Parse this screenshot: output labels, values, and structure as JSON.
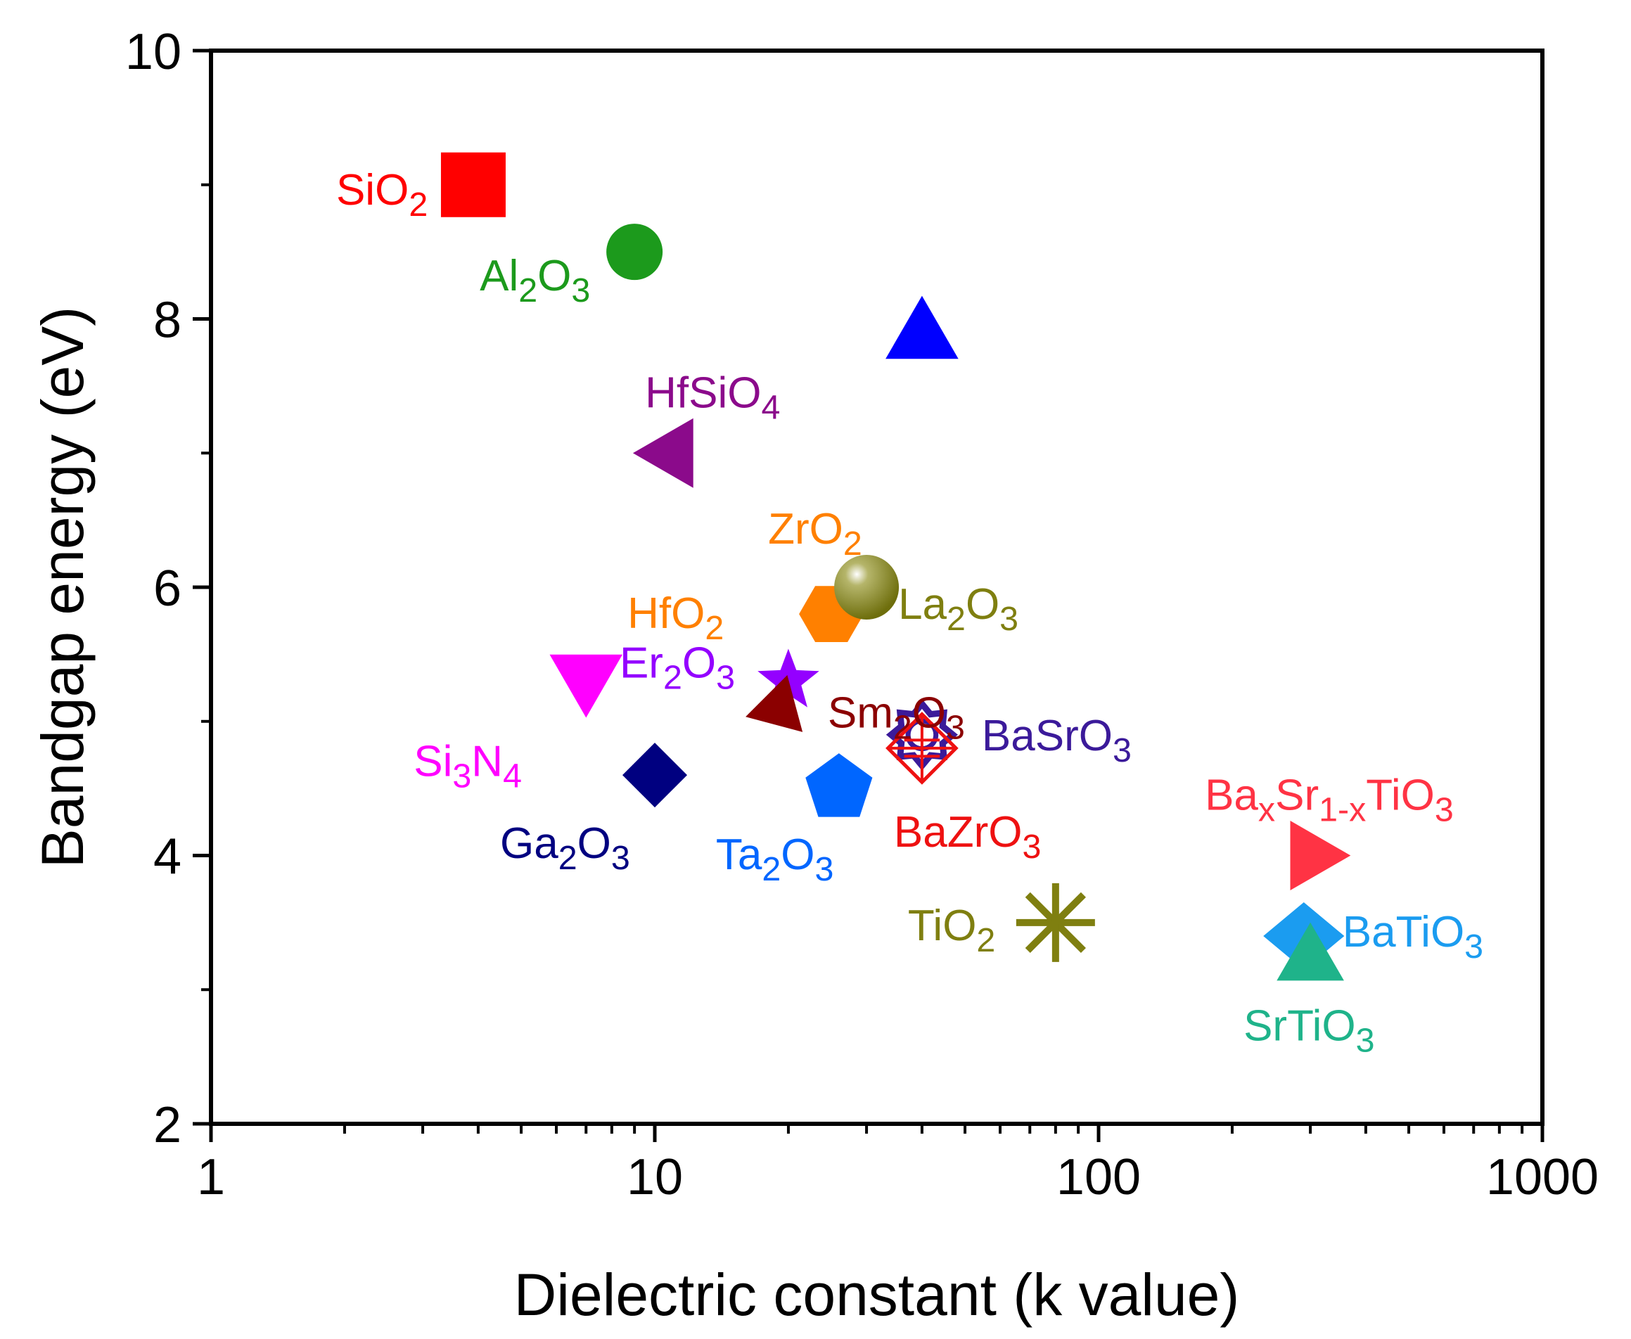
{
  "chart_data": {
    "type": "scatter",
    "title": "",
    "xlabel": "Dielectric constant (k value)",
    "ylabel": "Bandgap energy (eV)",
    "xscale": "log",
    "xlim": [
      1,
      1000
    ],
    "ylim": [
      2,
      10
    ],
    "xticks": [
      1,
      10,
      100,
      1000
    ],
    "xtick_labels": [
      "1",
      "10",
      "100",
      "1000"
    ],
    "yticks": [
      2,
      4,
      6,
      8,
      10
    ],
    "ytick_labels": [
      "2",
      "4",
      "6",
      "8",
      "10"
    ],
    "grid": false,
    "legend": "none",
    "points": [
      {
        "id": "sio2",
        "x": 3.9,
        "y": 9.0,
        "marker": "square",
        "color": "#ff0000",
        "label": [
          [
            "SiO",
            ""
          ],
          [
            "2",
            "sub"
          ]
        ]
      },
      {
        "id": "al2o3",
        "x": 9,
        "y": 8.5,
        "marker": "circle",
        "color": "#1c9a1c",
        "label": [
          [
            "Al",
            ""
          ],
          [
            "2",
            "sub"
          ],
          [
            "O",
            ""
          ],
          [
            "3",
            "sub"
          ]
        ]
      },
      {
        "id": "unlabeled-blue",
        "x": 40,
        "y": 7.9,
        "marker": "triangle-up",
        "color": "#0000ff",
        "label": []
      },
      {
        "id": "hfsio4",
        "x": 11,
        "y": 7.0,
        "marker": "triangle-left",
        "color": "#8b0a8b",
        "label": [
          [
            "HfSiO",
            ""
          ],
          [
            "4",
            "sub"
          ]
        ]
      },
      {
        "id": "zro2",
        "x": 25,
        "y": 5.8,
        "marker": "hexagon",
        "color": "#ff8000",
        "label": [
          [
            "ZrO",
            ""
          ],
          [
            "2",
            "sub"
          ]
        ]
      },
      {
        "id": "hfo2",
        "x": 25,
        "y": 5.8,
        "marker": "hexagon",
        "color": "#ff8000",
        "label": [
          [
            "HfO",
            ""
          ],
          [
            "2",
            "sub"
          ]
        ]
      },
      {
        "id": "la2o3",
        "x": 30,
        "y": 6.0,
        "marker": "sphere",
        "color": "#7f7f10",
        "label": [
          [
            "La",
            ""
          ],
          [
            "2",
            "sub"
          ],
          [
            "O",
            ""
          ],
          [
            "3",
            "sub"
          ]
        ]
      },
      {
        "id": "er2o3",
        "x": 20,
        "y": 5.3,
        "marker": "star",
        "color": "#9400ff",
        "label": [
          [
            "Er",
            ""
          ],
          [
            "2",
            "sub"
          ],
          [
            "O",
            ""
          ],
          [
            "3",
            "sub"
          ]
        ]
      },
      {
        "id": "sm2o3",
        "x": 19,
        "y": 5.1,
        "marker": "triangle-right-down",
        "color": "#8b0000",
        "label": [
          [
            "Sm",
            ""
          ],
          [
            "2",
            "sub"
          ],
          [
            "O",
            ""
          ],
          [
            "3",
            "sub"
          ]
        ]
      },
      {
        "id": "si3n4",
        "x": 7,
        "y": 5.3,
        "marker": "triangle-down",
        "color": "#ff00ff",
        "label": [
          [
            "Si",
            ""
          ],
          [
            "3",
            "sub"
          ],
          [
            "N",
            ""
          ],
          [
            "4",
            "sub"
          ]
        ]
      },
      {
        "id": "ga2o3",
        "x": 10,
        "y": 4.6,
        "marker": "diamond",
        "color": "#000080",
        "label": [
          [
            "Ga",
            ""
          ],
          [
            "2",
            "sub"
          ],
          [
            "O",
            ""
          ],
          [
            "3",
            "sub"
          ]
        ]
      },
      {
        "id": "ta2o3",
        "x": 26,
        "y": 4.5,
        "marker": "pentagon",
        "color": "#0066ff",
        "label": [
          [
            "Ta",
            ""
          ],
          [
            "2",
            "sub"
          ],
          [
            "O",
            ""
          ],
          [
            "3",
            "sub"
          ]
        ]
      },
      {
        "id": "basro3",
        "x": 40,
        "y": 4.9,
        "marker": "burst",
        "color": "#3b1a9a",
        "label": [
          [
            "BaSrO",
            ""
          ],
          [
            "3",
            "sub"
          ]
        ]
      },
      {
        "id": "bazro3",
        "x": 40,
        "y": 4.8,
        "marker": "octahedron",
        "color": "#ee1111",
        "label": [
          [
            "BaZrO",
            ""
          ],
          [
            "3",
            "sub"
          ]
        ]
      },
      {
        "id": "bastio3",
        "x": 300,
        "y": 4.0,
        "marker": "triangle-right",
        "color": "#ff3344",
        "label": [
          [
            "Ba",
            ""
          ],
          [
            "x",
            "sub"
          ],
          [
            "Sr",
            ""
          ],
          [
            "1-x",
            "sub"
          ],
          [
            "TiO",
            ""
          ],
          [
            "3",
            "sub"
          ]
        ]
      },
      {
        "id": "tio2",
        "x": 80,
        "y": 3.5,
        "marker": "asterisk",
        "color": "#7f7f10",
        "label": [
          [
            "TiO",
            ""
          ],
          [
            "2",
            "sub"
          ]
        ]
      },
      {
        "id": "batio3",
        "x": 290,
        "y": 3.4,
        "marker": "diamond-wide",
        "color": "#1b9cf0",
        "label": [
          [
            "BaTiO",
            ""
          ],
          [
            "3",
            "sub"
          ]
        ]
      },
      {
        "id": "srtio3",
        "x": 300,
        "y": 3.25,
        "marker": "triangle-up",
        "color": "#1fb38a",
        "label": [
          [
            "SrTiO",
            ""
          ],
          [
            "3",
            "sub"
          ]
        ]
      }
    ]
  }
}
